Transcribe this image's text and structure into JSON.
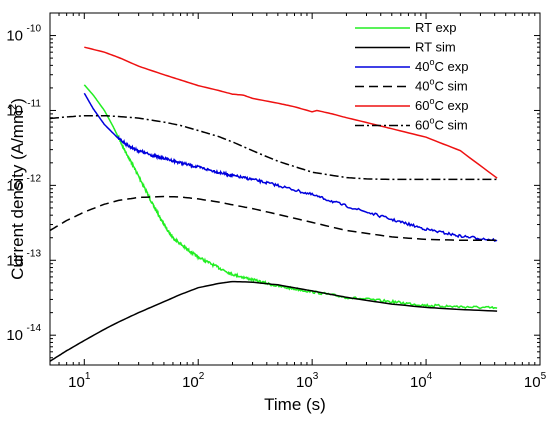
{
  "chart_data": {
    "type": "line",
    "xscale": "log",
    "yscale": "log",
    "xlabel": "Time (s)",
    "ylabel": "Current density (A/mm²)",
    "ylabel_parts": {
      "main": "Current density (A/mm",
      "sup": "2",
      "tail": ")"
    },
    "xlim": [
      5,
      100000
    ],
    "ylim": [
      4e-15,
      2e-10
    ],
    "x_ticks": [
      {
        "value": 10,
        "base": "10",
        "exp": "1"
      },
      {
        "value": 100,
        "base": "10",
        "exp": "2"
      },
      {
        "value": 1000,
        "base": "10",
        "exp": "3"
      },
      {
        "value": 10000,
        "base": "10",
        "exp": "4"
      },
      {
        "value": 100000,
        "base": "10",
        "exp": "5"
      }
    ],
    "y_ticks": [
      {
        "value": 1e-14,
        "base": "10",
        "exp": "-14"
      },
      {
        "value": 1e-13,
        "base": "10",
        "exp": "-13"
      },
      {
        "value": 1e-12,
        "base": "10",
        "exp": "-12"
      },
      {
        "value": 1e-11,
        "base": "10",
        "exp": "-11"
      },
      {
        "value": 1e-10,
        "base": "10",
        "exp": "-10"
      }
    ],
    "grid": false,
    "legend_position": "top-right",
    "series": [
      {
        "name": "RT exp",
        "legend": {
          "pre": "RT exp"
        },
        "color": "#22ee22",
        "dash": "solid",
        "noise": true,
        "x": [
          10,
          12,
          15,
          18,
          22,
          27,
          33,
          40,
          50,
          60,
          80,
          100,
          150,
          200,
          300,
          500,
          1000,
          2000,
          5000,
          10000,
          20000,
          42000
        ],
        "y": [
          2.2e-11,
          1.6e-11,
          1e-11,
          6e-12,
          3.2e-12,
          1.8e-12,
          1e-12,
          5.5e-13,
          3e-13,
          2e-13,
          1.4e-13,
          1.1e-13,
          8e-14,
          6.5e-14,
          5.5e-14,
          4.5e-14,
          3.8e-14,
          3.2e-14,
          2.8e-14,
          2.5e-14,
          2.4e-14,
          2.3e-14
        ]
      },
      {
        "name": "RT sim",
        "legend": {
          "pre": "RT sim"
        },
        "color": "#000000",
        "dash": "solid",
        "x": [
          5,
          7,
          10,
          15,
          20,
          30,
          50,
          70,
          100,
          150,
          200,
          300,
          500,
          1000,
          2000,
          5000,
          10000,
          20000,
          42000
        ],
        "y": [
          4.5e-15,
          6.2e-15,
          8.5e-15,
          1.2e-14,
          1.5e-14,
          2e-14,
          2.8e-14,
          3.5e-14,
          4.3e-14,
          4.9e-14,
          5.2e-14,
          5.1e-14,
          4.7e-14,
          3.9e-14,
          3.2e-14,
          2.6e-14,
          2.35e-14,
          2.2e-14,
          2.1e-14
        ]
      },
      {
        "name": "40°C exp",
        "legend": {
          "pre": "40",
          "deg": "o",
          "post": "C exp"
        },
        "color": "#0000dd",
        "dash": "solid",
        "noise": true,
        "x": [
          10,
          12,
          15,
          20,
          25,
          30,
          40,
          50,
          70,
          100,
          150,
          200,
          300,
          500,
          1000,
          2000,
          5000,
          10000,
          20000,
          42000
        ],
        "y": [
          1.7e-11,
          1.05e-11,
          6.5e-12,
          4.2e-12,
          3.3e-12,
          2.9e-12,
          2.5e-12,
          2.3e-12,
          2e-12,
          1.75e-12,
          1.5e-12,
          1.35e-12,
          1.2e-12,
          1e-12,
          7.5e-13,
          5.3e-13,
          3.5e-13,
          2.6e-13,
          2.1e-13,
          1.85e-13
        ]
      },
      {
        "name": "40°C sim",
        "legend": {
          "pre": "40",
          "deg": "o",
          "post": "C sim"
        },
        "color": "#000000",
        "dash": "dashed",
        "x": [
          5,
          7,
          10,
          15,
          20,
          30,
          50,
          70,
          100,
          150,
          200,
          300,
          500,
          1000,
          2000,
          5000,
          10000,
          20000,
          42000
        ],
        "y": [
          2.5e-13,
          3.4e-13,
          4.4e-13,
          5.6e-13,
          6.3e-13,
          6.9e-13,
          7.1e-13,
          7e-13,
          6.6e-13,
          6e-13,
          5.5e-13,
          4.9e-13,
          4.1e-13,
          3.2e-13,
          2.5e-13,
          2.05e-13,
          1.9e-13,
          1.85e-13,
          1.85e-13
        ]
      },
      {
        "name": "60°C exp",
        "legend": {
          "pre": "60",
          "deg": "o",
          "post": "C exp"
        },
        "color": "#ee1111",
        "dash": "solid",
        "x": [
          10,
          15,
          20,
          30,
          50,
          70,
          100,
          150,
          200,
          250,
          300,
          500,
          700,
          1000,
          1100,
          1500,
          2000,
          3000,
          5000,
          10000,
          20000,
          42000
        ],
        "y": [
          7e-11,
          6e-11,
          5.1e-11,
          3.9e-11,
          3e-11,
          2.55e-11,
          2.15e-11,
          1.85e-11,
          1.65e-11,
          1.6e-11,
          1.45e-11,
          1.25e-11,
          1.12e-11,
          9.6e-12,
          1e-11,
          9e-12,
          8e-12,
          6.9e-12,
          5.7e-12,
          4.4e-12,
          2.9e-12,
          1.25e-12
        ]
      },
      {
        "name": "60°C sim",
        "legend": {
          "pre": "60",
          "deg": "o",
          "post": "C sim"
        },
        "color": "#000000",
        "dash": "dashdot",
        "x": [
          5,
          7,
          10,
          15,
          20,
          30,
          50,
          70,
          100,
          150,
          200,
          300,
          500,
          1000,
          2000,
          3000,
          5000,
          10000,
          20000,
          42000
        ],
        "y": [
          7.8e-12,
          8.2e-12,
          8.5e-12,
          8.5e-12,
          8.3e-12,
          7.9e-12,
          7e-12,
          6.3e-12,
          5.4e-12,
          4.5e-12,
          3.8e-12,
          2.9e-12,
          2.1e-12,
          1.5e-12,
          1.27e-12,
          1.22e-12,
          1.2e-12,
          1.2e-12,
          1.2e-12,
          1.2e-12
        ]
      }
    ]
  }
}
